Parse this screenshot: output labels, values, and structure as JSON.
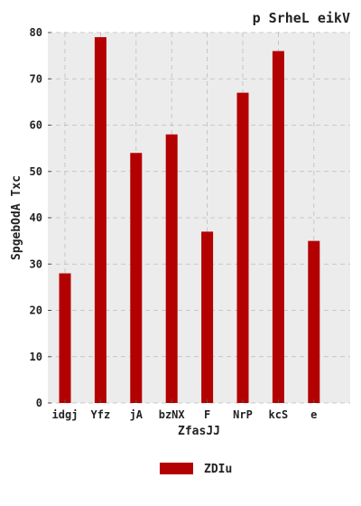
{
  "chart_data": {
    "type": "bar",
    "title": "p  SrheL eikV",
    "xlabel": "ZfasJJ",
    "ylabel": "SpgebOdA Txc",
    "categories": [
      "idgj",
      "Yfz",
      "jA",
      "bzNX",
      "F",
      "NrP",
      "kcS",
      "e"
    ],
    "series": [
      {
        "name": "ZDIu",
        "values": [
          28,
          79,
          54,
          58,
          37,
          67,
          76,
          35
        ],
        "color": "#b30000"
      }
    ],
    "ylim": [
      0,
      80
    ],
    "yticks": [
      0,
      10,
      20,
      30,
      40,
      50,
      60,
      70,
      80
    ],
    "grid": true,
    "legend_position": "bottom-center",
    "colors": {
      "plot_background": "#ececec",
      "grid": "#bdbdbd",
      "bar": "#b30000"
    }
  }
}
